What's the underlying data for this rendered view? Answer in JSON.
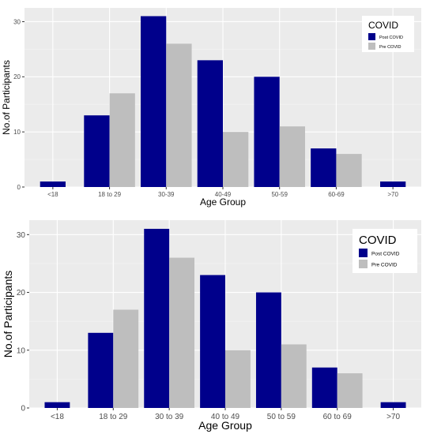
{
  "chart_data": [
    {
      "type": "bar",
      "categories": [
        "<18",
        "18 to 29",
        "30-39",
        "40-49",
        "50-59",
        "60-69",
        ">70"
      ],
      "series": [
        {
          "name": "Post COVID",
          "color": "#00008B",
          "values": [
            1,
            13,
            31,
            23,
            20,
            7,
            1
          ]
        },
        {
          "name": "Pre COVID",
          "color": "#BEBEBE",
          "values": [
            0,
            17,
            26,
            10,
            11,
            6,
            0
          ]
        }
      ],
      "xlabel": "Age Group",
      "ylabel": "No.of Participants",
      "yticks": [
        0,
        10,
        20,
        30
      ],
      "ylim": [
        0,
        32.5
      ],
      "legend_title": "COVID",
      "legend_position": "top-right",
      "grid": true
    },
    {
      "type": "bar",
      "categories": [
        "<18",
        "18 to 29",
        "30 to 39",
        "40 to 49",
        "50 to 59",
        "60 to 69",
        ">70"
      ],
      "series": [
        {
          "name": "Post COVID",
          "color": "#00008B",
          "values": [
            1,
            13,
            31,
            23,
            20,
            7,
            1
          ]
        },
        {
          "name": "Pre COVID",
          "color": "#BEBEBE",
          "values": [
            0,
            17,
            26,
            10,
            11,
            6,
            0
          ]
        }
      ],
      "xlabel": "Age Group",
      "ylabel": "No.of Participants",
      "yticks": [
        0,
        10,
        20,
        30
      ],
      "ylim": [
        0,
        32.5
      ],
      "legend_title": "COVID",
      "legend_position": "top-right",
      "grid": true
    }
  ]
}
